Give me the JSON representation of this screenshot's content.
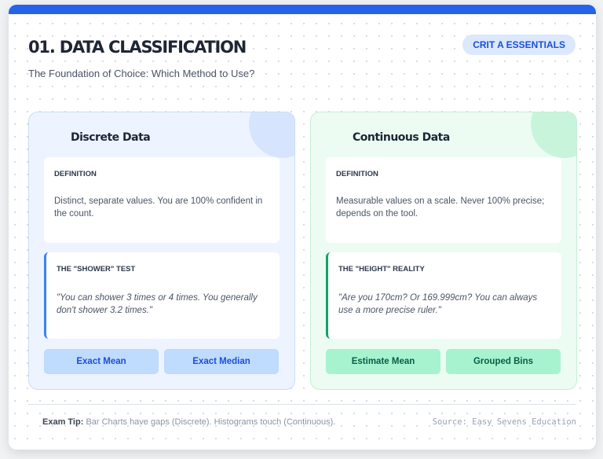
{
  "header": {
    "title": "01. DATA CLASSIFICATION",
    "subtitle": "The Foundation of Choice: Which Method to Use?",
    "badge": "CRIT A ESSENTIALS"
  },
  "colors": {
    "accent": "#2563eb",
    "discrete": "#3b82f6",
    "continuous": "#10a36a"
  },
  "discrete": {
    "title": "Discrete Data",
    "definition_label": "DEFINITION",
    "definition": "Distinct, separate values. You are 100% confident in the count.",
    "test_label": "THE \"SHOWER\" TEST",
    "test": "\"You can shower 3 times or 4 times. You generally don't shower 3.2 times.\"",
    "buttons": [
      "Exact Mean",
      "Exact Median"
    ]
  },
  "continuous": {
    "title": "Continuous Data",
    "definition_label": "DEFINITION",
    "definition": "Measurable values on a scale. Never 100% precise; depends on the tool.",
    "test_label": "THE \"HEIGHT\" REALITY",
    "test": "\"Are you 170cm? Or 169.999cm? You can always use a more precise ruler.\"",
    "buttons": [
      "Estimate Mean",
      "Grouped Bins"
    ]
  },
  "footer": {
    "tip_label": "Exam Tip:",
    "tip": "Bar Charts have gaps (Discrete). Histograms touch (Continuous).",
    "source": "Source: Easy Sevens Education"
  }
}
